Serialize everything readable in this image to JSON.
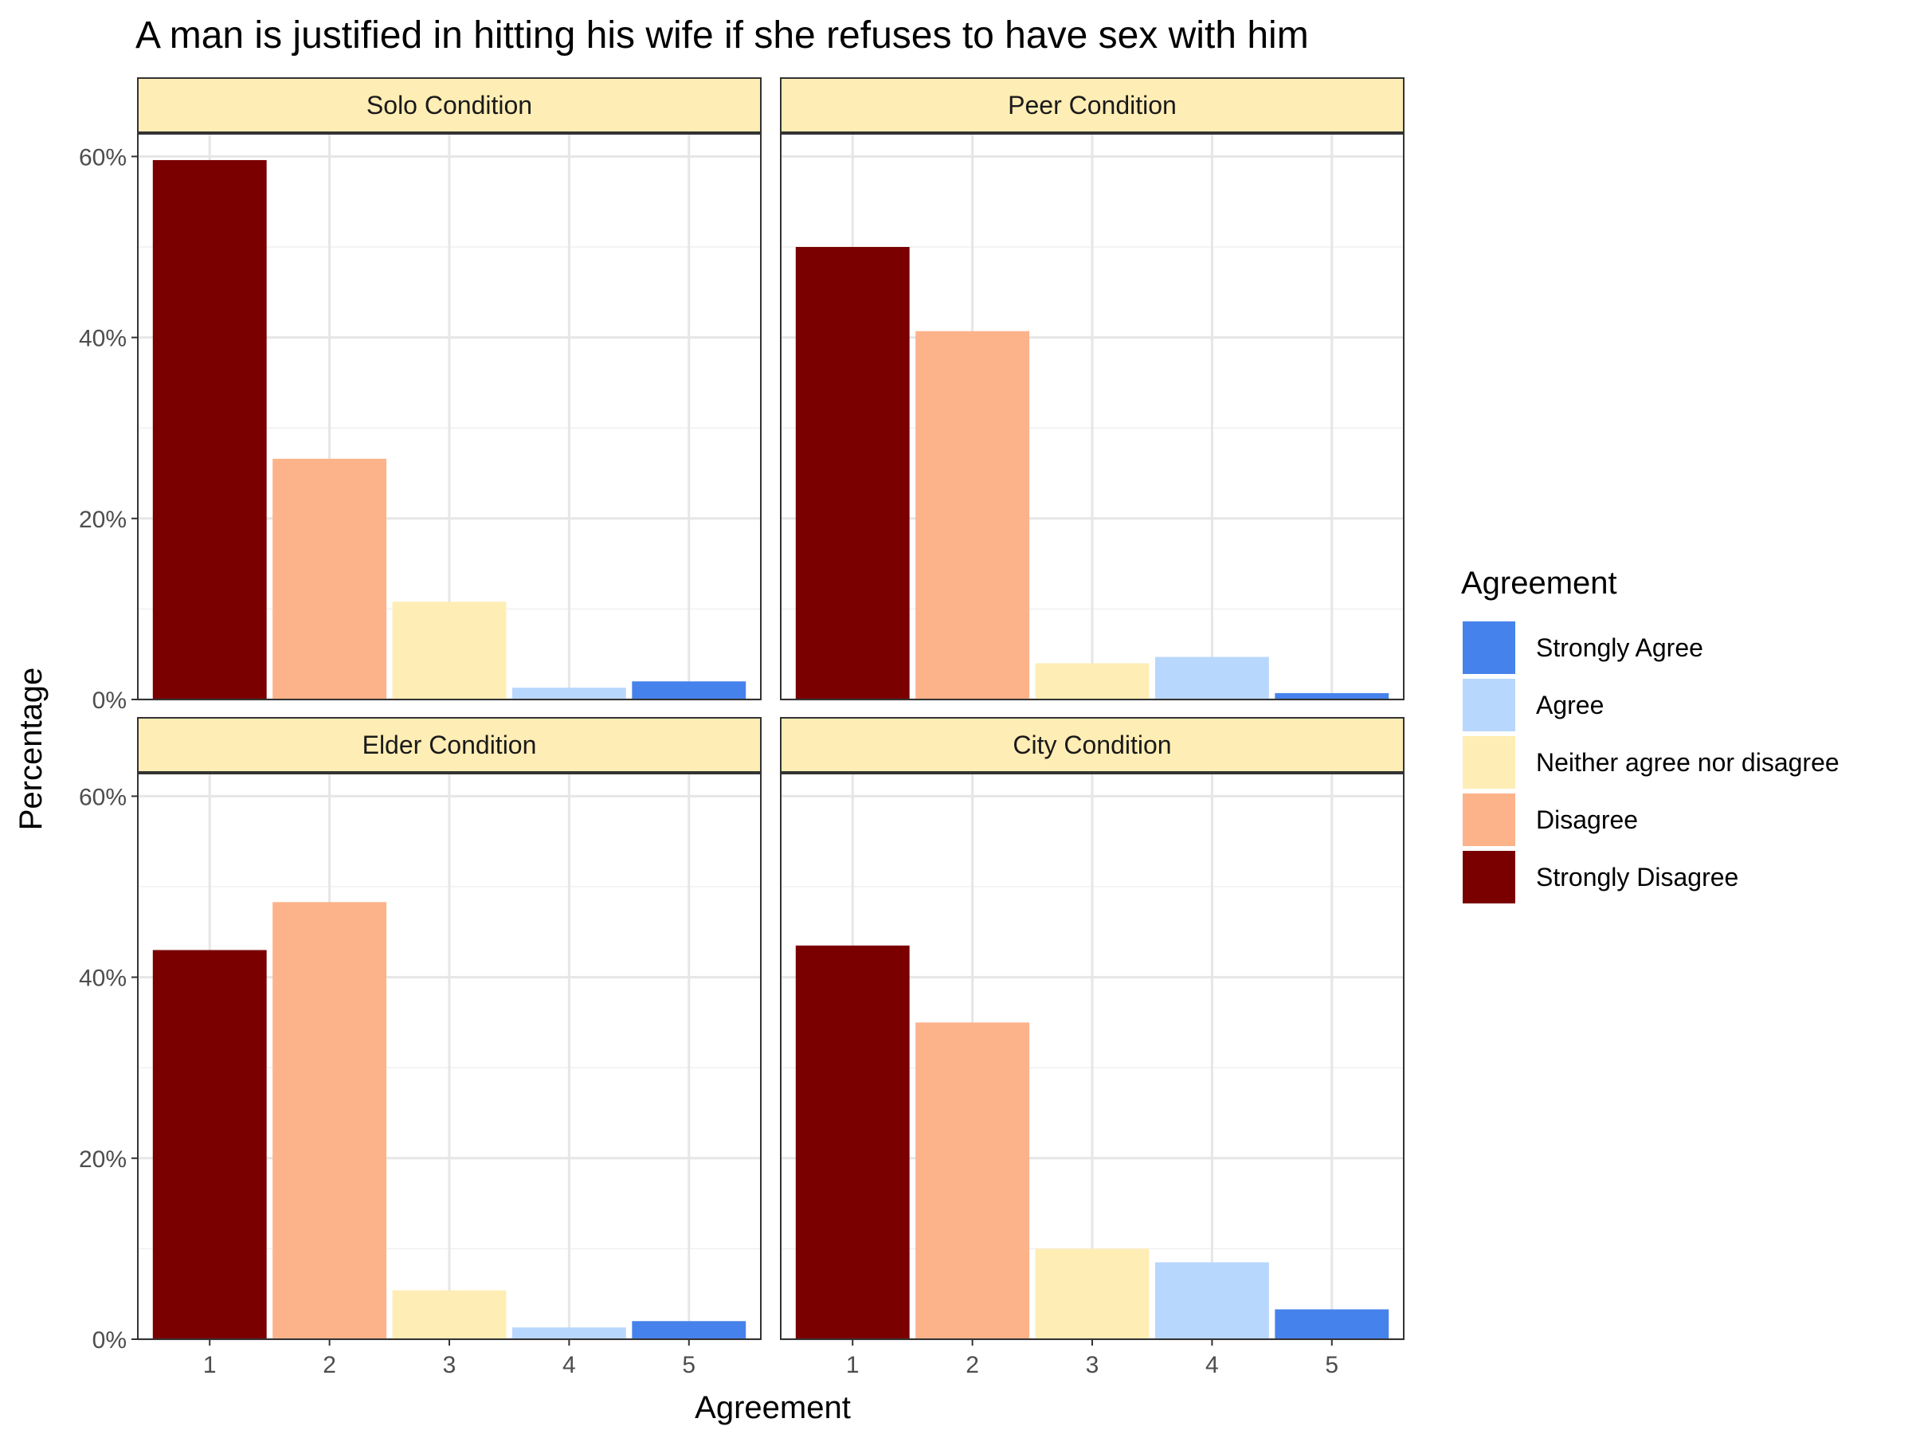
{
  "chart_data": {
    "type": "bar",
    "title": "A man is justified in hitting his wife if she refuses to have sex with him",
    "xlabel": "Agreement",
    "ylabel": "Percentage",
    "categories": [
      "1",
      "2",
      "3",
      "4",
      "5"
    ],
    "y_ticks": [
      "0%",
      "20%",
      "40%",
      "60%"
    ],
    "ylim": [
      0,
      0.625
    ],
    "grid": true,
    "legend": {
      "title": "Agreement",
      "position": "right",
      "entries": [
        {
          "label": "Strongly Agree",
          "color": "#4682eb"
        },
        {
          "label": "Agree",
          "color": "#b8d7fd"
        },
        {
          "label": "Neither agree nor disagree",
          "color": "#feedb4"
        },
        {
          "label": "Disagree",
          "color": "#fdb38a"
        },
        {
          "label": "Strongly Disagree",
          "color": "#7a0000"
        }
      ]
    },
    "bar_colors": [
      "#7a0000",
      "#fdb38a",
      "#feedb4",
      "#b8d7fd",
      "#4682eb"
    ],
    "strip_fill": "#feedb4",
    "panels": [
      {
        "name": "Solo Condition",
        "values": [
          0.596,
          0.266,
          0.108,
          0.013,
          0.02
        ]
      },
      {
        "name": "Peer Condition",
        "values": [
          0.5,
          0.407,
          0.04,
          0.047,
          0.007
        ]
      },
      {
        "name": "Elder Condition",
        "values": [
          0.43,
          0.483,
          0.054,
          0.013,
          0.02
        ]
      },
      {
        "name": "City Condition",
        "values": [
          0.435,
          0.35,
          0.1,
          0.085,
          0.033
        ]
      }
    ]
  }
}
